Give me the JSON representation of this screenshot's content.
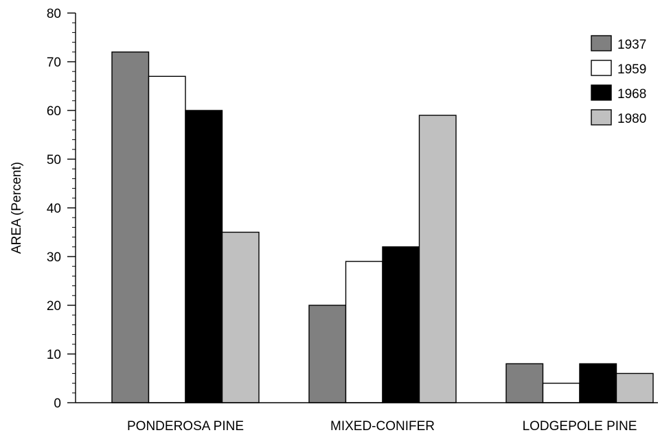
{
  "chart_data": {
    "type": "bar",
    "title": "",
    "xlabel": "",
    "ylabel": "AREA (Percent)",
    "ylim": [
      0,
      80
    ],
    "yticks": [
      0,
      10,
      20,
      30,
      40,
      50,
      60,
      70,
      80
    ],
    "categories": [
      "PONDEROSA PINE",
      "MIXED-CONIFER",
      "LODGEPOLE PINE"
    ],
    "series": [
      {
        "name": "1937",
        "color": "#808080",
        "values": [
          72,
          20,
          8
        ]
      },
      {
        "name": "1959",
        "color": "#ffffff",
        "values": [
          67,
          29,
          4
        ]
      },
      {
        "name": "1968",
        "color": "#000000",
        "values": [
          60,
          32,
          8
        ]
      },
      {
        "name": "1980",
        "color": "#c0c0c0",
        "values": [
          35,
          59,
          6
        ]
      }
    ],
    "legend_position": "top-right",
    "grid": false
  }
}
